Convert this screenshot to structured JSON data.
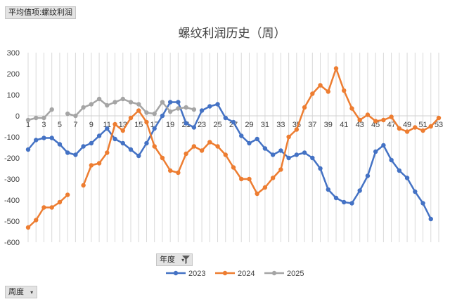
{
  "field_buttons": {
    "value_field": "平均值项:螺纹利润",
    "year_field": "年度",
    "week_field": "周度"
  },
  "icons": {
    "year_filter": "filter-icon",
    "year_dropdown": "chevron-down-icon",
    "week_dropdown": "chevron-down-icon"
  },
  "chart_data": {
    "type": "line",
    "title": "螺纹利润历史（周）",
    "xlabel": "",
    "ylabel": "",
    "xlim": [
      1,
      53
    ],
    "ylim": [
      -600,
      300
    ],
    "y_ticks": [
      300,
      200,
      100,
      0,
      -100,
      -200,
      -300,
      -400,
      -500,
      -600
    ],
    "x_tick_labels": [
      "1",
      "3",
      "5",
      "7",
      "9",
      "11",
      "13",
      "15",
      "17",
      "19",
      "21",
      "23",
      "25",
      "27",
      "29",
      "31",
      "33",
      "35",
      "37",
      "39",
      "41",
      "43",
      "45",
      "47",
      "49",
      "51",
      "53"
    ],
    "grid": "vertical",
    "legend": "bottom",
    "x": [
      1,
      2,
      3,
      4,
      5,
      6,
      7,
      8,
      9,
      10,
      11,
      12,
      13,
      14,
      15,
      16,
      17,
      18,
      19,
      20,
      21,
      22,
      23,
      24,
      25,
      26,
      27,
      28,
      29,
      30,
      31,
      32,
      33,
      34,
      35,
      36,
      37,
      38,
      39,
      40,
      41,
      42,
      43,
      44,
      45,
      46,
      47,
      48,
      49,
      50,
      51,
      52,
      53
    ],
    "series": [
      {
        "name": "2023",
        "color": "#4472c4",
        "values": [
          -160,
          -115,
          -105,
          -105,
          -135,
          -175,
          -185,
          -145,
          -130,
          -95,
          -60,
          -110,
          -130,
          -160,
          -190,
          -130,
          -60,
          0,
          65,
          65,
          -35,
          -55,
          25,
          45,
          55,
          -10,
          -30,
          -95,
          -130,
          -110,
          -155,
          -185,
          -165,
          -200,
          -185,
          -175,
          -200,
          -250,
          -350,
          -390,
          -410,
          -415,
          -355,
          -285,
          -170,
          -140,
          -210,
          -260,
          -295,
          -360,
          -415,
          -490,
          null
        ]
      },
      {
        "name": "2024",
        "color": "#ed7d31",
        "values": [
          -530,
          -495,
          -435,
          -435,
          -410,
          -375,
          null,
          -330,
          -235,
          -225,
          -175,
          -40,
          -70,
          -10,
          25,
          -30,
          -145,
          -200,
          -260,
          -270,
          -180,
          -145,
          -165,
          -125,
          -145,
          -185,
          -245,
          -300,
          -300,
          -370,
          -340,
          -295,
          -255,
          -100,
          -65,
          40,
          105,
          145,
          115,
          225,
          120,
          35,
          -20,
          5,
          -25,
          -20,
          -5,
          -60,
          -75,
          -55,
          -70,
          -50,
          -10
        ]
      },
      {
        "name": "2025",
        "color": "#a5a5a5",
        "values": [
          -20,
          -10,
          -10,
          30,
          null,
          10,
          0,
          40,
          55,
          80,
          50,
          65,
          80,
          65,
          55,
          15,
          10,
          65,
          20,
          35,
          40,
          30,
          null,
          null,
          null,
          null,
          null,
          null,
          null,
          null,
          null,
          null,
          null,
          null,
          null,
          null,
          null,
          null,
          null,
          null,
          null,
          null,
          null,
          null,
          null,
          null,
          null,
          null,
          null,
          null,
          null,
          null,
          null
        ]
      }
    ]
  }
}
